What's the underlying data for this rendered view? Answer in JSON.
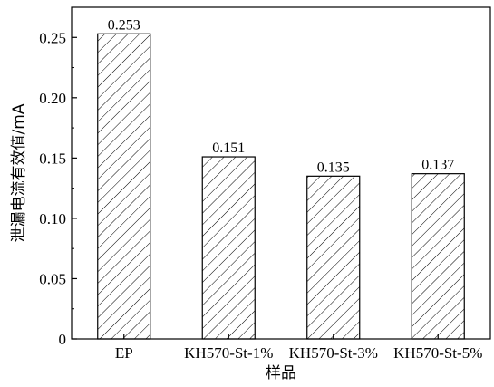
{
  "chart_data": {
    "type": "bar",
    "categories": [
      "EP",
      "KH570-St-1%",
      "KH570-St-3%",
      "KH570-St-5%"
    ],
    "values": [
      0.253,
      0.151,
      0.135,
      0.137
    ],
    "data_labels": [
      "0.253",
      "0.151",
      "0.135",
      "0.137"
    ],
    "title": "",
    "xlabel": "样品",
    "ylabel": "泄漏电流有效值/mA",
    "ylim": [
      0,
      0.275
    ],
    "yticks": [
      0,
      0.05,
      0.1,
      0.15,
      0.2,
      0.25
    ],
    "ytick_labels": [
      "0",
      "0.05",
      "0.10",
      "0.15",
      "0.20",
      "0.25"
    ],
    "bar_fill": "hatched",
    "grid": false,
    "legend": "none"
  }
}
